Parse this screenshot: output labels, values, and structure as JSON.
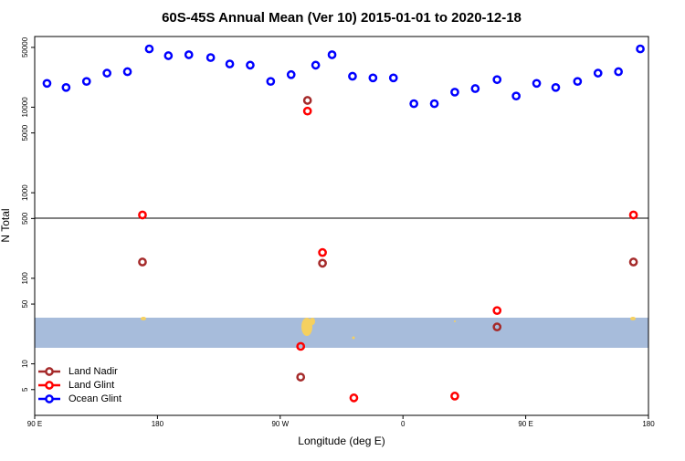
{
  "chart_data": {
    "type": "scatter",
    "title": "60S-45S Annual Mean (Ver 10)   2015-01-01 to 2020-12-18",
    "x_label": "Longitude (deg E)",
    "y_label": "N Total",
    "log_y": true,
    "xlim": [
      90,
      540
    ],
    "ylim": [
      2.5,
      67000
    ],
    "xticks": [
      {
        "value": 90,
        "label": "90 E"
      },
      180,
      {
        "value": 270,
        "label": "90 W"
      },
      {
        "value": 360,
        "label": "0"
      },
      {
        "value": 450,
        "label": "90 E"
      },
      {
        "value": 540,
        "label": "180"
      }
    ],
    "yticks": [
      5,
      10,
      50,
      100,
      500,
      1000,
      5000,
      10000,
      50000
    ],
    "legend": "bottom-left",
    "series": [
      {
        "name": "Land Nadir",
        "color": "#a52a2a",
        "x": [
          169,
          290,
          301,
          285,
          429,
          529
        ],
        "values": [
          155,
          12000,
          150,
          7,
          27,
          155
        ]
      },
      {
        "name": "Land Glint",
        "color": "#ff0000",
        "x": [
          169,
          290,
          301,
          285,
          324,
          398,
          429,
          529
        ],
        "values": [
          550,
          9000,
          200,
          16,
          4,
          4.2,
          42,
          550
        ]
      },
      {
        "name": "Ocean Glint",
        "color": "#0000ff",
        "x": [
          99,
          113,
          128,
          143,
          158,
          174,
          188,
          203,
          219,
          233,
          248,
          263,
          278,
          296,
          308,
          323,
          338,
          353,
          368,
          383,
          398,
          413,
          429,
          443,
          458,
          472,
          488,
          503,
          518,
          534
        ],
        "values": [
          19000,
          17000,
          20000,
          25000,
          26000,
          48000,
          40000,
          41000,
          38000,
          32000,
          31000,
          20000,
          24000,
          31000,
          41000,
          23000,
          22000,
          22000,
          11000,
          11000,
          15000,
          16500,
          21000,
          13500,
          19000,
          17000,
          20000,
          25000,
          26000,
          48000
        ]
      }
    ]
  }
}
